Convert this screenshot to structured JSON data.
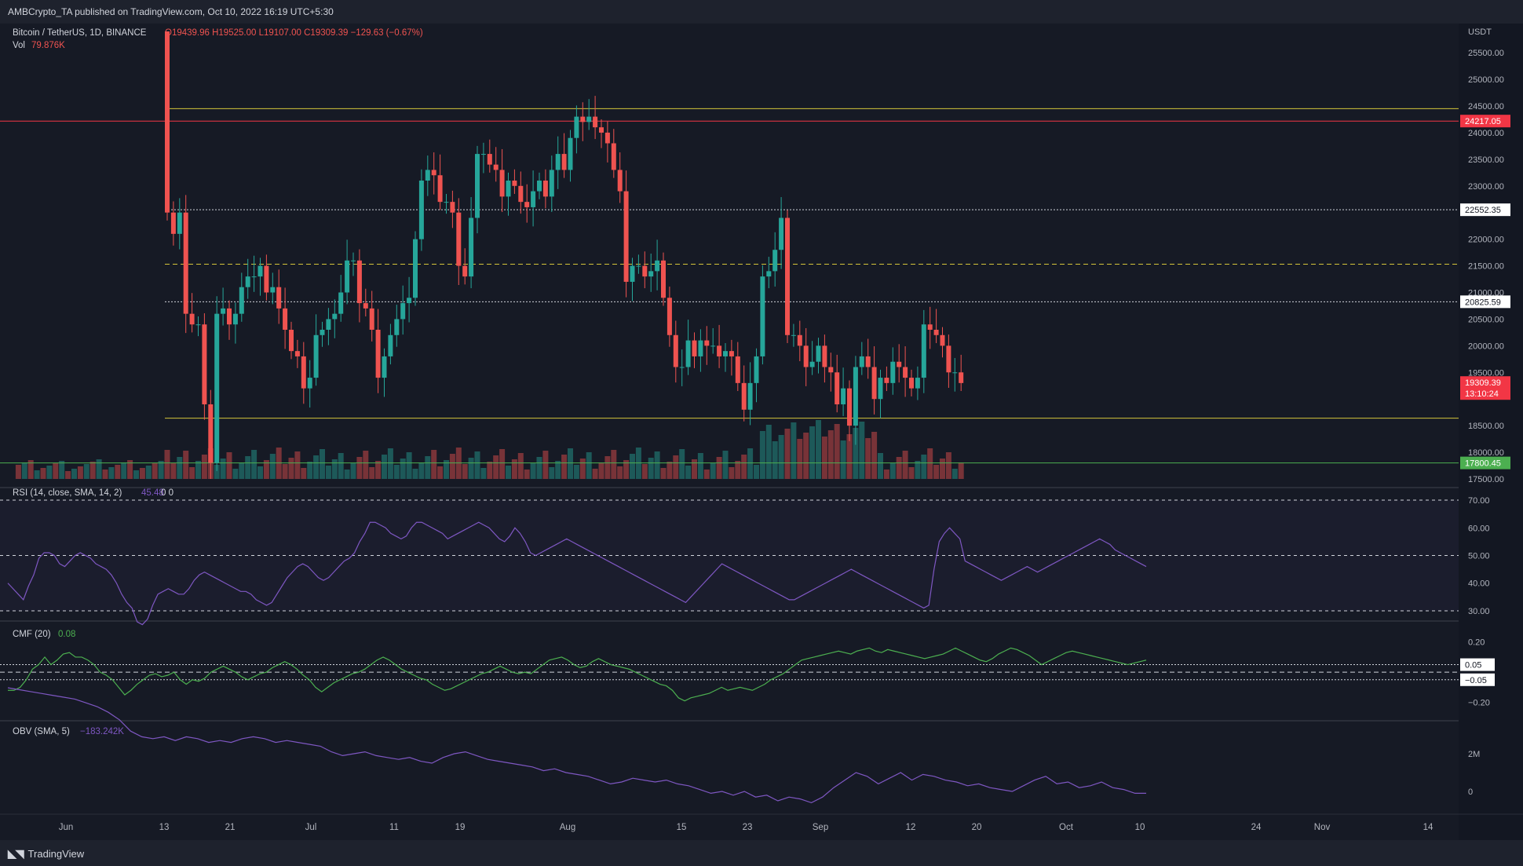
{
  "header": {
    "published": "AMBCrypto_TA published on TradingView.com, Oct 10, 2022 16:19 UTC+5:30"
  },
  "footer": {
    "brand": "TradingView"
  },
  "legend": {
    "symbol": "Bitcoin / TetherUS, 1D, BINANCE",
    "ohlc": "O19439.96  H19525.00  L19107.00  C19309.39  −129.63 (−0.67%)",
    "vol_label": "Vol",
    "vol_value": "79.876K",
    "rsi_label": "RSI (14, close, SMA, 14, 2)",
    "rsi_value": "45.48",
    "rsi_extra": "0  0",
    "cmf_label": "CMF (20)",
    "cmf_value": "0.08",
    "obv_label": "OBV (SMA, 5)",
    "obv_value": "−183.242K"
  },
  "colors": {
    "up": "#26a69a",
    "down": "#ef5350",
    "rsi": "#7e57c2",
    "cmf": "#4caf50",
    "obv": "#7e57c2",
    "level": "#d5c53a",
    "resistance": "#f23645",
    "support_box": "#4caf50"
  },
  "chart_data": [
    {
      "type": "candlestick",
      "title": "Bitcoin / TetherUS, 1D, BINANCE",
      "currency": "USDT",
      "ylim": [
        17500,
        25900
      ],
      "y_ticks": [
        "25500.00",
        "25000.00",
        "24500.00",
        "24000.00",
        "23500.00",
        "23000.00",
        "22000.00",
        "21500.00",
        "21000.00",
        "20500.00",
        "20000.00",
        "19500.00",
        "18500.00",
        "18000.00",
        "17500.00"
      ],
      "x_ticks": [
        "Jun",
        "13",
        "21",
        "Jul",
        "11",
        "19",
        "Aug",
        "15",
        "23",
        "Sep",
        "12",
        "20",
        "Oct",
        "10",
        "24",
        "Nov",
        "14"
      ],
      "price_labels": [
        {
          "value": 24217.05,
          "text": "24217.05",
          "style": "red"
        },
        {
          "value": 22552.35,
          "text": "22552.35",
          "style": "white"
        },
        {
          "value": 20825.59,
          "text": "20825.59",
          "style": "white"
        },
        {
          "value": 19309.39,
          "text": "19309.39",
          "sub": "13:10:24",
          "style": "red"
        },
        {
          "value": 17800.45,
          "text": "17800.45",
          "style": "green"
        }
      ],
      "levels": [
        {
          "value": 24450,
          "style": "solid",
          "color": "#d5c53a"
        },
        {
          "value": 24217.05,
          "style": "solid",
          "color": "#f23645"
        },
        {
          "value": 22552.35,
          "style": "dotted",
          "color": "#d1d4dc"
        },
        {
          "value": 21530,
          "style": "dashed",
          "color": "#d5c53a"
        },
        {
          "value": 20825.59,
          "style": "dotted",
          "color": "#d1d4dc"
        },
        {
          "value": 18640,
          "style": "solid",
          "color": "#d5c53a"
        },
        {
          "value": 17800.45,
          "style": "solid",
          "color": "#4caf50"
        }
      ],
      "closes_jun13_oct10": [
        22500,
        22100,
        22500,
        20600,
        20400,
        20400,
        18900,
        17800,
        20600,
        20700,
        20400,
        20600,
        21100,
        21300,
        21300,
        21500,
        21000,
        21100,
        20700,
        20300,
        19900,
        19800,
        19200,
        19400,
        20200,
        20300,
        20500,
        20600,
        21000,
        21600,
        21600,
        20800,
        20700,
        20300,
        19400,
        19800,
        20200,
        20500,
        20800,
        20900,
        22000,
        23100,
        23300,
        23200,
        22700,
        22700,
        22500,
        21500,
        21300,
        22400,
        23600,
        23600,
        23400,
        23300,
        22800,
        23100,
        23000,
        22700,
        22600,
        22900,
        23100,
        22800,
        23300,
        23600,
        23300,
        23900,
        24300,
        24200,
        24300,
        24100,
        24000,
        23800,
        23300,
        22900,
        21200,
        21500,
        21500,
        21300,
        21400,
        21600,
        20900,
        20200,
        19600,
        19600,
        20100,
        19800,
        20100,
        20000,
        20000,
        19800,
        19900,
        19800,
        19300,
        18800,
        19300,
        19800,
        21300,
        21400,
        21800,
        22400,
        20200,
        20200,
        20000,
        19600,
        19700,
        20000,
        19600,
        19500,
        18900,
        19200,
        18500,
        19600,
        19800,
        19600,
        19000,
        19400,
        19300,
        19700,
        19600,
        19400,
        19200,
        19400,
        20400,
        20300,
        20200,
        20000,
        19500,
        19500,
        19300
      ]
    },
    {
      "type": "line",
      "name": "RSI (14, close, SMA, 14, 2)",
      "ylim": [
        28,
        72
      ],
      "y_ticks": [
        "70.00",
        "60.00",
        "50.00",
        "40.00",
        "30.00"
      ],
      "bands": [
        70,
        50,
        30
      ],
      "values": [
        40,
        38,
        36,
        34,
        39,
        43,
        49,
        51,
        51,
        50,
        47,
        46,
        48,
        50,
        51,
        50,
        49,
        47,
        46,
        45,
        43,
        40,
        36,
        33,
        31,
        26,
        25,
        27,
        32,
        36,
        37,
        38,
        37,
        36,
        36,
        38,
        41,
        43,
        44,
        43,
        42,
        41,
        40,
        39,
        38,
        37,
        37,
        36,
        34,
        33,
        32,
        33,
        36,
        39,
        42,
        44,
        46,
        47,
        46,
        44,
        42,
        41,
        42,
        44,
        46,
        48,
        49,
        51,
        55,
        58,
        62,
        62,
        61,
        60,
        58,
        57,
        56,
        57,
        60,
        62,
        62,
        61,
        60,
        59,
        58,
        56,
        57,
        58,
        59,
        60,
        61,
        62,
        61,
        60,
        58,
        56,
        55,
        57,
        60,
        58,
        55,
        51,
        50,
        51,
        52,
        53,
        54,
        55,
        56,
        55,
        54,
        53,
        52,
        51,
        50,
        49,
        48,
        47,
        46,
        45,
        44,
        43,
        42,
        41,
        40,
        39,
        38,
        37,
        36,
        35,
        34,
        33,
        35,
        37,
        39,
        41,
        43,
        45,
        47,
        46,
        45,
        44,
        43,
        42,
        41,
        40,
        39,
        38,
        37,
        36,
        35,
        34,
        34,
        35,
        36,
        37,
        38,
        39,
        40,
        41,
        42,
        43,
        44,
        45,
        44,
        43,
        42,
        41,
        40,
        39,
        38,
        37,
        36,
        35,
        34,
        33,
        32,
        31,
        32,
        45,
        55,
        58,
        60,
        58,
        56,
        48,
        47,
        46,
        45,
        44,
        43,
        42,
        41,
        42,
        43,
        44,
        45,
        46,
        45,
        44,
        45,
        46,
        47,
        48,
        49,
        50,
        51,
        52,
        53,
        54,
        55,
        56,
        55,
        54,
        52,
        51,
        50,
        49,
        48,
        47,
        46
      ]
    },
    {
      "type": "line",
      "name": "CMF (20)",
      "ylim": [
        -0.28,
        0.24
      ],
      "y_ticks": [
        "0.20",
        "0.05",
        "−0.05",
        "−0.20"
      ],
      "bands": [
        0.05,
        0.0,
        -0.05
      ],
      "values": [
        -0.12,
        -0.12,
        -0.1,
        -0.05,
        0.02,
        0.05,
        0.1,
        0.05,
        0.08,
        0.12,
        0.13,
        0.1,
        0.1,
        0.08,
        0.05,
        0.0,
        -0.02,
        -0.05,
        -0.1,
        -0.15,
        -0.12,
        -0.08,
        -0.05,
        -0.02,
        -0.01,
        -0.03,
        -0.02,
        0.0,
        -0.05,
        -0.08,
        -0.05,
        -0.06,
        -0.04,
        0.0,
        0.02,
        0.04,
        0.02,
        0.0,
        -0.03,
        -0.05,
        -0.03,
        -0.01,
        0.0,
        0.03,
        0.05,
        0.07,
        0.05,
        0.02,
        -0.02,
        -0.05,
        -0.1,
        -0.13,
        -0.1,
        -0.07,
        -0.05,
        -0.03,
        -0.01,
        0.0,
        0.02,
        0.05,
        0.08,
        0.1,
        0.08,
        0.05,
        0.02,
        0.0,
        -0.02,
        -0.04,
        -0.05,
        -0.08,
        -0.1,
        -0.12,
        -0.11,
        -0.09,
        -0.07,
        -0.05,
        -0.03,
        -0.01,
        0.0,
        0.02,
        0.04,
        0.02,
        0.0,
        -0.01,
        0.0,
        -0.01,
        0.02,
        0.05,
        0.08,
        0.09,
        0.1,
        0.08,
        0.05,
        0.03,
        0.04,
        0.07,
        0.09,
        0.07,
        0.05,
        0.04,
        0.03,
        0.02,
        0.0,
        -0.02,
        -0.04,
        -0.06,
        -0.08,
        -0.09,
        -0.12,
        -0.17,
        -0.19,
        -0.17,
        -0.16,
        -0.15,
        -0.14,
        -0.12,
        -0.1,
        -0.12,
        -0.11,
        -0.1,
        -0.11,
        -0.12,
        -0.1,
        -0.08,
        -0.05,
        -0.03,
        -0.01,
        0.02,
        0.05,
        0.08,
        0.09,
        0.1,
        0.11,
        0.12,
        0.13,
        0.14,
        0.13,
        0.12,
        0.14,
        0.15,
        0.16,
        0.14,
        0.13,
        0.15,
        0.14,
        0.13,
        0.12,
        0.11,
        0.1,
        0.09,
        0.1,
        0.11,
        0.12,
        0.14,
        0.16,
        0.14,
        0.12,
        0.1,
        0.08,
        0.07,
        0.09,
        0.12,
        0.14,
        0.16,
        0.15,
        0.13,
        0.11,
        0.08,
        0.05,
        0.07,
        0.09,
        0.11,
        0.13,
        0.14,
        0.13,
        0.12,
        0.11,
        0.1,
        0.09,
        0.08,
        0.07,
        0.06,
        0.05,
        0.06,
        0.07,
        0.08
      ]
    },
    {
      "type": "line",
      "name": "OBV (SMA, 5)",
      "y_ticks": [
        "2M",
        "0"
      ],
      "values": [
        5.5,
        5.4,
        5.3,
        5.2,
        5.1,
        5.0,
        4.9,
        4.7,
        4.5,
        4.2,
        3.8,
        3.2,
        2.9,
        2.8,
        2.9,
        2.7,
        2.9,
        2.8,
        2.6,
        2.7,
        2.6,
        2.8,
        2.9,
        2.8,
        2.6,
        2.7,
        2.6,
        2.5,
        2.4,
        2.1,
        1.9,
        2.0,
        2.1,
        1.9,
        1.8,
        1.7,
        1.8,
        1.6,
        1.5,
        1.8,
        2.0,
        2.1,
        1.9,
        1.7,
        1.6,
        1.5,
        1.4,
        1.3,
        1.1,
        1.2,
        1.0,
        0.9,
        0.8,
        0.6,
        0.4,
        0.5,
        0.7,
        0.6,
        0.5,
        0.6,
        0.4,
        0.3,
        0.1,
        -0.1,
        0.0,
        -0.2,
        0.0,
        -0.3,
        -0.2,
        -0.5,
        -0.3,
        -0.4,
        -0.6,
        -0.3,
        0.2,
        0.6,
        1.0,
        0.8,
        0.4,
        0.7,
        1.0,
        0.6,
        0.9,
        0.8,
        0.6,
        0.5,
        0.3,
        0.4,
        0.2,
        0.1,
        0.0,
        0.3,
        0.6,
        0.8,
        0.4,
        0.5,
        0.2,
        0.3,
        0.5,
        0.2,
        0.1,
        -0.1,
        -0.1
      ]
    }
  ]
}
